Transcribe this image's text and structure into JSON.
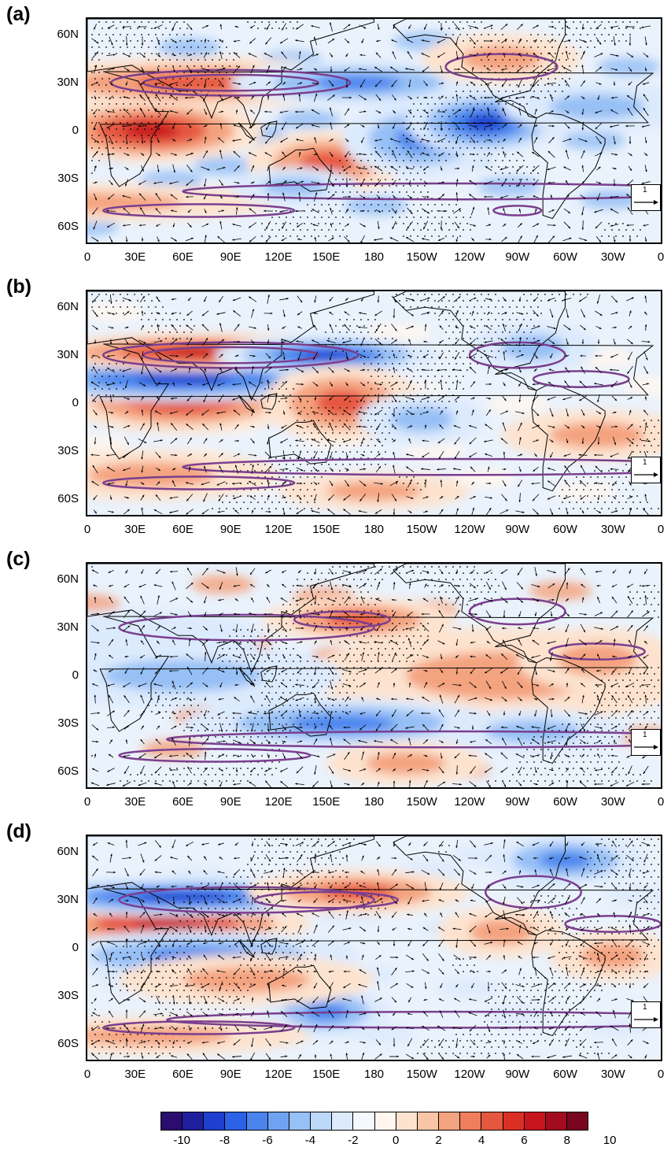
{
  "panels": [
    {
      "label": "(a)"
    },
    {
      "label": "(b)"
    },
    {
      "label": "(c)"
    },
    {
      "label": "(d)"
    }
  ],
  "y_ticks": [
    "60N",
    "30N",
    "0",
    "30S",
    "60S"
  ],
  "x_ticks": [
    "0",
    "30E",
    "60E",
    "90E",
    "120E",
    "150E",
    "180",
    "150W",
    "120W",
    "90W",
    "60W",
    "30W",
    "0"
  ],
  "reference_vector": "1",
  "colorbar": {
    "labels": [
      "-10",
      "-8",
      "-6",
      "-4",
      "-2",
      "0",
      "2",
      "4",
      "6",
      "8",
      "10"
    ],
    "colors": [
      "#2a0d6e",
      "#1e1f9c",
      "#1f3fd0",
      "#2b62e6",
      "#4a85ee",
      "#6fa3f2",
      "#96c0f6",
      "#bcd8fa",
      "#dceafd",
      "#f4f9ff",
      "#fff7ef",
      "#fde3cf",
      "#f9c5a6",
      "#f4a37f",
      "#ee7e5c",
      "#e6573f",
      "#dc2f24",
      "#c8141d",
      "#a30b1f",
      "#7a0520"
    ]
  }
}
